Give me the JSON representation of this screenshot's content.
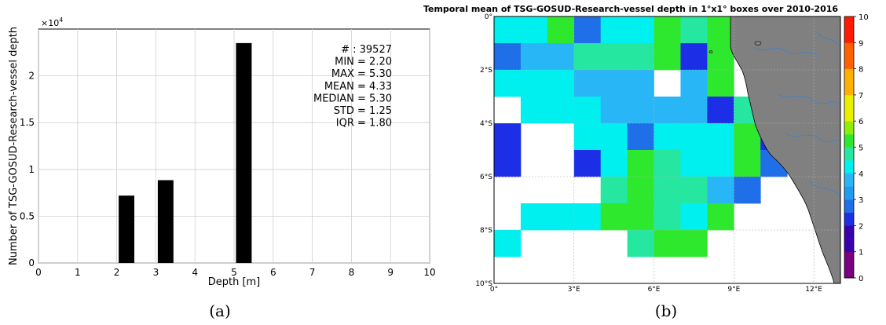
{
  "chart_data": [
    {
      "type": "bar",
      "title": "",
      "xlabel": "Depth [m]",
      "ylabel": "Number of TSG-GOSUD-Research-vessel depth",
      "x_ticks": [
        "0",
        "1",
        "2",
        "3",
        "4",
        "5",
        "6",
        "7",
        "8",
        "9",
        "10"
      ],
      "y_ticks": [
        "0",
        "0.5",
        "1",
        "1.5",
        "2"
      ],
      "y_multiplier": "×10",
      "y_multiplier_exp": "4",
      "xlim": [
        0,
        10
      ],
      "ylim": [
        0,
        25000
      ],
      "bar_width": 0.4,
      "grid": true,
      "bars": [
        {
          "x": 2.25,
          "value": 7200
        },
        {
          "x": 3.25,
          "value": 8850
        },
        {
          "x": 5.25,
          "value": 23500
        }
      ],
      "stats": [
        "# : 39527",
        "MIN = 2.20",
        "MAX =  5.30",
        "MEAN = 4.33",
        "MEDIAN = 5.30",
        "STD = 1.25",
        "IQR = 1.80"
      ],
      "panel_label": "(a)",
      "bar_color": "#000000"
    },
    {
      "type": "heatmap",
      "title": "Temporal mean of TSG-GOSUD-Research-vessel depth in 1°x1° boxes over 2010-2016",
      "x_ticks": [
        "0°",
        "3°E",
        "6°E",
        "9°E",
        "12°E"
      ],
      "y_ticks": [
        "0°",
        "2°S",
        "4°S",
        "6°S",
        "8°S",
        "10°S"
      ],
      "xlim": [
        0,
        13
      ],
      "ylim": [
        -10,
        0
      ],
      "colorbar_ticks": [
        "0",
        "1",
        "2",
        "3",
        "4",
        "5",
        "6",
        "7",
        "8",
        "9",
        "10"
      ],
      "colorbar_range": [
        0,
        10
      ],
      "land_color": "#808080",
      "panel_label": "(b)",
      "grid": true,
      "legend": "colorbar right",
      "cells": [
        {
          "lon": 0,
          "lat": 0,
          "v": 4.0
        },
        {
          "lon": 1,
          "lat": 0,
          "v": 4.0
        },
        {
          "lon": 2,
          "lat": 0,
          "v": 5.0
        },
        {
          "lon": 3,
          "lat": 0,
          "v": 2.5
        },
        {
          "lon": 4,
          "lat": 0,
          "v": 4.0
        },
        {
          "lon": 5,
          "lat": 0,
          "v": 4.0
        },
        {
          "lon": 6,
          "lat": 0,
          "v": 5.0
        },
        {
          "lon": 7,
          "lat": 0,
          "v": 4.5
        },
        {
          "lon": 8,
          "lat": 0,
          "v": 5.0
        },
        {
          "lon": 0,
          "lat": -1,
          "v": 2.5
        },
        {
          "lon": 1,
          "lat": -1,
          "v": 3.5
        },
        {
          "lon": 2,
          "lat": -1,
          "v": 3.5
        },
        {
          "lon": 3,
          "lat": -1,
          "v": 4.5
        },
        {
          "lon": 4,
          "lat": -1,
          "v": 4.5
        },
        {
          "lon": 5,
          "lat": -1,
          "v": 4.5
        },
        {
          "lon": 6,
          "lat": -1,
          "v": 5.0
        },
        {
          "lon": 7,
          "lat": -1,
          "v": 2.0
        },
        {
          "lon": 8,
          "lat": -1,
          "v": 5.0
        },
        {
          "lon": 0,
          "lat": -2,
          "v": 4.0
        },
        {
          "lon": 1,
          "lat": -2,
          "v": 4.0
        },
        {
          "lon": 2,
          "lat": -2,
          "v": 4.0
        },
        {
          "lon": 3,
          "lat": -2,
          "v": 3.5
        },
        {
          "lon": 4,
          "lat": -2,
          "v": 3.5
        },
        {
          "lon": 5,
          "lat": -2,
          "v": 3.5
        },
        {
          "lon": 7,
          "lat": -2,
          "v": 3.5
        },
        {
          "lon": 8,
          "lat": -2,
          "v": 5.0
        },
        {
          "lon": 1,
          "lat": -3,
          "v": 4.0
        },
        {
          "lon": 2,
          "lat": -3,
          "v": 4.0
        },
        {
          "lon": 3,
          "lat": -3,
          "v": 4.0
        },
        {
          "lon": 4,
          "lat": -3,
          "v": 3.5
        },
        {
          "lon": 5,
          "lat": -3,
          "v": 3.5
        },
        {
          "lon": 6,
          "lat": -3,
          "v": 3.5
        },
        {
          "lon": 7,
          "lat": -3,
          "v": 3.5
        },
        {
          "lon": 8,
          "lat": -3,
          "v": 2.0
        },
        {
          "lon": 9,
          "lat": -3,
          "v": 4.5
        },
        {
          "lon": 0,
          "lat": -4,
          "v": 2.0
        },
        {
          "lon": 3,
          "lat": -4,
          "v": 4.0
        },
        {
          "lon": 4,
          "lat": -4,
          "v": 4.0
        },
        {
          "lon": 5,
          "lat": -4,
          "v": 2.5
        },
        {
          "lon": 6,
          "lat": -4,
          "v": 4.0
        },
        {
          "lon": 7,
          "lat": -4,
          "v": 4.0
        },
        {
          "lon": 8,
          "lat": -4,
          "v": 4.0
        },
        {
          "lon": 9,
          "lat": -4,
          "v": 5.0
        },
        {
          "lon": 10,
          "lat": -4,
          "v": 2.0
        },
        {
          "lon": 0,
          "lat": -5,
          "v": 2.0
        },
        {
          "lon": 3,
          "lat": -5,
          "v": 2.0
        },
        {
          "lon": 4,
          "lat": -5,
          "v": 4.0
        },
        {
          "lon": 5,
          "lat": -5,
          "v": 5.0
        },
        {
          "lon": 6,
          "lat": -5,
          "v": 4.5
        },
        {
          "lon": 7,
          "lat": -5,
          "v": 4.0
        },
        {
          "lon": 8,
          "lat": -5,
          "v": 4.0
        },
        {
          "lon": 9,
          "lat": -5,
          "v": 5.0
        },
        {
          "lon": 10,
          "lat": -5,
          "v": 2.5
        },
        {
          "lon": 4,
          "lat": -6,
          "v": 4.5
        },
        {
          "lon": 5,
          "lat": -6,
          "v": 5.0
        },
        {
          "lon": 6,
          "lat": -6,
          "v": 4.5
        },
        {
          "lon": 7,
          "lat": -6,
          "v": 4.5
        },
        {
          "lon": 8,
          "lat": -6,
          "v": 3.5
        },
        {
          "lon": 9,
          "lat": -6,
          "v": 2.5
        },
        {
          "lon": 1,
          "lat": -7,
          "v": 4.0
        },
        {
          "lon": 2,
          "lat": -7,
          "v": 4.0
        },
        {
          "lon": 3,
          "lat": -7,
          "v": 4.0
        },
        {
          "lon": 4,
          "lat": -7,
          "v": 5.0
        },
        {
          "lon": 5,
          "lat": -7,
          "v": 5.0
        },
        {
          "lon": 6,
          "lat": -7,
          "v": 4.5
        },
        {
          "lon": 7,
          "lat": -7,
          "v": 4.0
        },
        {
          "lon": 8,
          "lat": -7,
          "v": 5.0
        },
        {
          "lon": 0,
          "lat": -8,
          "v": 4.0
        },
        {
          "lon": 5,
          "lat": -8,
          "v": 4.5
        },
        {
          "lon": 6,
          "lat": -8,
          "v": 5.0
        },
        {
          "lon": 7,
          "lat": -8,
          "v": 5.0
        }
      ]
    }
  ]
}
